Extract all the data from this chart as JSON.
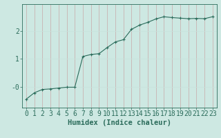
{
  "xlabel": "Humidex (Indice chaleur)",
  "background_color": "#cde8e2",
  "grid_color_v": "#b8d8d2",
  "grid_color_h": "#c8e2dc",
  "line_color": "#2a6b5a",
  "x": [
    0,
    1,
    2,
    3,
    4,
    5,
    6,
    7,
    8,
    9,
    10,
    11,
    12,
    13,
    14,
    15,
    16,
    17,
    18,
    19,
    20,
    21,
    22,
    23
  ],
  "y": [
    -0.45,
    -0.22,
    -0.1,
    -0.08,
    -0.05,
    -0.02,
    -0.02,
    1.08,
    1.15,
    1.18,
    1.4,
    1.6,
    1.68,
    2.05,
    2.2,
    2.3,
    2.42,
    2.5,
    2.47,
    2.45,
    2.43,
    2.44,
    2.43,
    2.5
  ],
  "xlim": [
    -0.5,
    23.5
  ],
  "ylim": [
    -0.75,
    2.95
  ],
  "yticks": [
    0,
    1,
    2
  ],
  "ytick_labels": [
    "-0",
    "1",
    "2"
  ],
  "tick_fontsize": 7,
  "label_fontsize": 7.5
}
